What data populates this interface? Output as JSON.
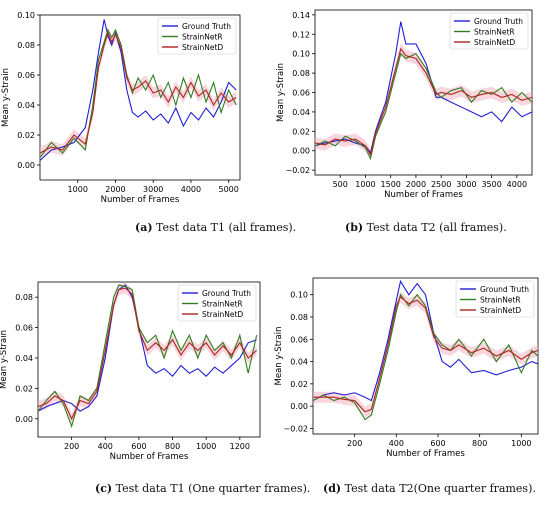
{
  "captions": [
    {
      "letter": "(a)",
      "text": "Test data T1 (all frames)."
    },
    {
      "letter": "(b)",
      "text": "Test data T2 (all frames)."
    },
    {
      "letter": "(c)",
      "text": "Test data T1 (One quarter frames)."
    },
    {
      "letter": "(d)",
      "text": "Test data T2(One quarter frames)."
    }
  ],
  "colors": {
    "ground_truth": "#1f1fd6",
    "strainnetr": "#2e7d1f",
    "strainnetd": "#b0241f",
    "band": "#f4b3c2"
  },
  "chart_data": [
    {
      "type": "line",
      "xlabel": "Number of Frames",
      "ylabel": "Mean y-Strain",
      "xlim": [
        0,
        5300
      ],
      "ylim": [
        -0.01,
        0.1
      ],
      "xticks": [
        1000,
        2000,
        3000,
        4000,
        5000
      ],
      "yticks": [
        "0.00",
        "0.02",
        "0.04",
        "0.06",
        "0.08",
        "0.10"
      ],
      "legend": "top-right",
      "series": [
        {
          "name": "Ground Truth",
          "x": [
            0,
            300,
            600,
            900,
            1200,
            1400,
            1550,
            1700,
            1800,
            1900,
            2000,
            2150,
            2300,
            2450,
            2600,
            2800,
            3000,
            3200,
            3400,
            3600,
            3800,
            4000,
            4200,
            4400,
            4600,
            4800,
            5000,
            5200
          ],
          "y": [
            0.003,
            0.01,
            0.012,
            0.015,
            0.025,
            0.05,
            0.075,
            0.097,
            0.086,
            0.08,
            0.088,
            0.075,
            0.05,
            0.035,
            0.032,
            0.036,
            0.03,
            0.034,
            0.028,
            0.038,
            0.026,
            0.035,
            0.03,
            0.038,
            0.032,
            0.042,
            0.055,
            0.05
          ]
        },
        {
          "name": "StrainNetR",
          "x": [
            0,
            300,
            600,
            900,
            1200,
            1400,
            1550,
            1700,
            1800,
            1900,
            2000,
            2150,
            2300,
            2450,
            2600,
            2800,
            3000,
            3200,
            3400,
            3600,
            3800,
            4000,
            4200,
            4400,
            4600,
            4800,
            5000,
            5200
          ],
          "y": [
            0.005,
            0.015,
            0.008,
            0.018,
            0.01,
            0.04,
            0.07,
            0.082,
            0.09,
            0.085,
            0.09,
            0.08,
            0.06,
            0.048,
            0.058,
            0.05,
            0.06,
            0.045,
            0.055,
            0.04,
            0.058,
            0.045,
            0.06,
            0.042,
            0.055,
            0.035,
            0.05,
            0.04
          ]
        },
        {
          "name": "StrainNetD",
          "x": [
            0,
            300,
            600,
            900,
            1200,
            1400,
            1550,
            1700,
            1800,
            1900,
            2000,
            2150,
            2300,
            2450,
            2600,
            2800,
            3000,
            3200,
            3400,
            3600,
            3800,
            4000,
            4200,
            4400,
            4600,
            4800,
            5000,
            5200
          ],
          "y": [
            0.008,
            0.012,
            0.01,
            0.02,
            0.014,
            0.035,
            0.065,
            0.08,
            0.088,
            0.082,
            0.087,
            0.078,
            0.058,
            0.05,
            0.052,
            0.056,
            0.048,
            0.05,
            0.042,
            0.052,
            0.045,
            0.055,
            0.046,
            0.05,
            0.04,
            0.048,
            0.042,
            0.045
          ]
        }
      ]
    },
    {
      "type": "line",
      "xlabel": "Number of Frames",
      "ylabel": "Mean y-Strain",
      "xlim": [
        0,
        4300
      ],
      "ylim": [
        -0.025,
        0.145
      ],
      "xticks": [
        500,
        1000,
        1500,
        2000,
        2500,
        3000,
        3500,
        4000
      ],
      "yticks": [
        "−0.02",
        "0.00",
        "0.02",
        "0.04",
        "0.06",
        "0.08",
        "0.10",
        "0.12",
        "0.14"
      ],
      "legend": "top-right",
      "series": [
        {
          "name": "Ground Truth",
          "x": [
            0,
            200,
            400,
            600,
            800,
            1000,
            1100,
            1200,
            1400,
            1600,
            1700,
            1800,
            2000,
            2200,
            2400,
            2500,
            2700,
            2900,
            3100,
            3300,
            3500,
            3700,
            3900,
            4100,
            4300
          ],
          "y": [
            0.005,
            0.008,
            0.01,
            0.012,
            0.008,
            0.005,
            -0.002,
            0.02,
            0.05,
            0.1,
            0.133,
            0.11,
            0.11,
            0.09,
            0.055,
            0.055,
            0.05,
            0.045,
            0.04,
            0.035,
            0.04,
            0.03,
            0.045,
            0.035,
            0.04
          ]
        },
        {
          "name": "StrainNetR",
          "x": [
            0,
            200,
            400,
            600,
            800,
            1000,
            1100,
            1200,
            1400,
            1600,
            1700,
            1800,
            2000,
            2200,
            2400,
            2500,
            2700,
            2900,
            3100,
            3300,
            3500,
            3700,
            3900,
            4100,
            4300
          ],
          "y": [
            0.005,
            0.01,
            0.005,
            0.015,
            0.01,
            0.003,
            -0.008,
            0.015,
            0.04,
            0.08,
            0.1,
            0.095,
            0.1,
            0.085,
            0.06,
            0.055,
            0.062,
            0.065,
            0.05,
            0.062,
            0.058,
            0.065,
            0.05,
            0.06,
            0.05
          ]
        },
        {
          "name": "StrainNetD",
          "x": [
            0,
            200,
            400,
            600,
            800,
            1000,
            1100,
            1200,
            1400,
            1600,
            1700,
            1800,
            2000,
            2200,
            2400,
            2500,
            2700,
            2900,
            3100,
            3300,
            3500,
            3700,
            3900,
            4100,
            4300
          ],
          "y": [
            0.008,
            0.006,
            0.012,
            0.01,
            0.012,
            0.005,
            -0.004,
            0.018,
            0.045,
            0.085,
            0.105,
            0.098,
            0.095,
            0.08,
            0.058,
            0.06,
            0.058,
            0.062,
            0.055,
            0.058,
            0.06,
            0.055,
            0.058,
            0.052,
            0.055
          ]
        }
      ]
    },
    {
      "type": "line",
      "xlabel": "Number of Frames",
      "ylabel": "Mean y-Strain",
      "xlim": [
        0,
        1320
      ],
      "ylim": [
        -0.012,
        0.09
      ],
      "xticks": [
        200,
        400,
        600,
        800,
        1000,
        1200
      ],
      "yticks": [
        "0.00",
        "0.02",
        "0.04",
        "0.06",
        "0.08"
      ],
      "legend": "top-right",
      "series": [
        {
          "name": "Ground Truth",
          "x": [
            0,
            50,
            100,
            150,
            200,
            250,
            300,
            350,
            400,
            450,
            480,
            520,
            560,
            600,
            650,
            700,
            750,
            800,
            850,
            900,
            950,
            1000,
            1050,
            1100,
            1150,
            1200,
            1250,
            1300
          ],
          "y": [
            0.005,
            0.008,
            0.01,
            0.012,
            0.01,
            0.005,
            0.008,
            0.015,
            0.04,
            0.075,
            0.085,
            0.088,
            0.08,
            0.06,
            0.035,
            0.03,
            0.033,
            0.028,
            0.035,
            0.03,
            0.033,
            0.028,
            0.034,
            0.03,
            0.035,
            0.04,
            0.05,
            0.052
          ]
        },
        {
          "name": "StrainNetR",
          "x": [
            0,
            50,
            100,
            150,
            200,
            250,
            300,
            350,
            400,
            450,
            480,
            520,
            560,
            600,
            650,
            700,
            750,
            800,
            850,
            900,
            950,
            1000,
            1050,
            1100,
            1150,
            1200,
            1250,
            1300
          ],
          "y": [
            0.005,
            0.012,
            0.018,
            0.01,
            -0.005,
            0.015,
            0.012,
            0.02,
            0.05,
            0.08,
            0.088,
            0.087,
            0.085,
            0.06,
            0.05,
            0.055,
            0.04,
            0.058,
            0.045,
            0.055,
            0.04,
            0.055,
            0.045,
            0.05,
            0.04,
            0.055,
            0.03,
            0.055
          ]
        },
        {
          "name": "StrainNetD",
          "x": [
            0,
            50,
            100,
            150,
            200,
            250,
            300,
            350,
            400,
            450,
            480,
            520,
            560,
            600,
            650,
            700,
            750,
            800,
            850,
            900,
            950,
            1000,
            1050,
            1100,
            1150,
            1200,
            1250,
            1300
          ],
          "y": [
            0.008,
            0.01,
            0.015,
            0.012,
            0.0,
            0.012,
            0.01,
            0.018,
            0.045,
            0.075,
            0.085,
            0.086,
            0.082,
            0.058,
            0.045,
            0.05,
            0.045,
            0.052,
            0.042,
            0.05,
            0.045,
            0.05,
            0.042,
            0.048,
            0.042,
            0.05,
            0.04,
            0.045
          ]
        }
      ]
    },
    {
      "type": "line",
      "xlabel": "Number of Frames",
      "ylabel": "Mean y-Strain",
      "xlim": [
        0,
        1080
      ],
      "ylim": [
        -0.025,
        0.115
      ],
      "xticks": [
        200,
        400,
        600,
        800,
        1000
      ],
      "yticks": [
        "−0.02",
        "0.00",
        "0.02",
        "0.04",
        "0.06",
        "0.08",
        "0.10"
      ],
      "legend": "top-right",
      "series": [
        {
          "name": "Ground Truth",
          "x": [
            0,
            50,
            100,
            150,
            200,
            250,
            280,
            320,
            360,
            400,
            420,
            460,
            500,
            540,
            580,
            620,
            660,
            700,
            760,
            820,
            880,
            940,
            1000,
            1050,
            1080
          ],
          "y": [
            0.005,
            0.01,
            0.012,
            0.01,
            0.012,
            0.008,
            0.005,
            0.03,
            0.06,
            0.095,
            0.112,
            0.1,
            0.11,
            0.1,
            0.065,
            0.04,
            0.035,
            0.042,
            0.03,
            0.032,
            0.028,
            0.032,
            0.035,
            0.04,
            0.038
          ]
        },
        {
          "name": "StrainNetR",
          "x": [
            0,
            50,
            100,
            150,
            200,
            250,
            280,
            320,
            360,
            400,
            420,
            460,
            500,
            540,
            580,
            620,
            660,
            700,
            760,
            820,
            880,
            940,
            1000,
            1050,
            1080
          ],
          "y": [
            0.005,
            0.01,
            0.005,
            0.008,
            0.003,
            -0.012,
            -0.008,
            0.02,
            0.05,
            0.085,
            0.1,
            0.09,
            0.1,
            0.09,
            0.065,
            0.055,
            0.05,
            0.06,
            0.045,
            0.06,
            0.04,
            0.055,
            0.03,
            0.05,
            0.045
          ]
        },
        {
          "name": "StrainNetD",
          "x": [
            0,
            50,
            100,
            150,
            200,
            250,
            280,
            320,
            360,
            400,
            420,
            460,
            500,
            540,
            580,
            620,
            660,
            700,
            760,
            820,
            880,
            940,
            1000,
            1050,
            1080
          ],
          "y": [
            0.008,
            0.008,
            0.008,
            0.006,
            0.005,
            -0.005,
            -0.003,
            0.025,
            0.055,
            0.09,
            0.098,
            0.092,
            0.095,
            0.088,
            0.062,
            0.052,
            0.05,
            0.055,
            0.048,
            0.052,
            0.045,
            0.05,
            0.042,
            0.048,
            0.05
          ]
        }
      ]
    }
  ]
}
